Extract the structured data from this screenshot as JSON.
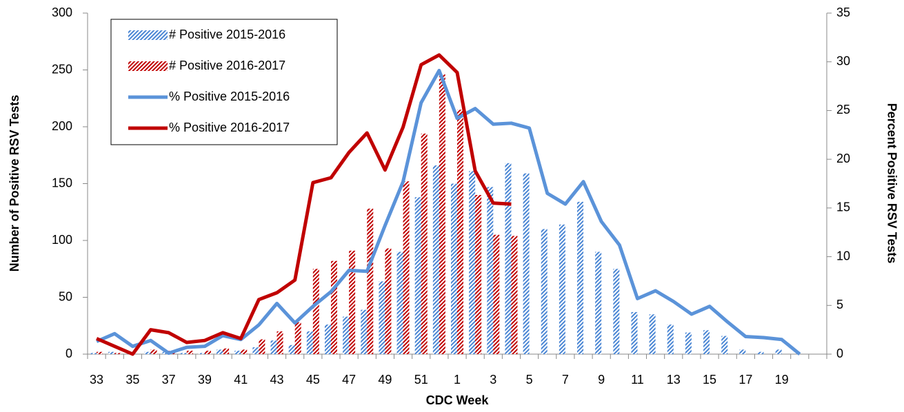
{
  "chart_data": {
    "type": "bar",
    "x_label": "CDC Week",
    "y_label": "Number of Positive RSV Tests",
    "y2_label": "Percent Positive RSV Tests",
    "categories": [
      "33",
      null,
      "35",
      null,
      "37",
      null,
      "39",
      null,
      "41",
      null,
      "43",
      null,
      "45",
      null,
      "47",
      null,
      "49",
      null,
      "51",
      null,
      "1",
      null,
      "3",
      null,
      "5",
      null,
      "7",
      null,
      "9",
      null,
      "11",
      null,
      "13",
      null,
      "15",
      null,
      "17",
      null,
      "19",
      null,
      null
    ],
    "series": [
      {
        "name": "# Positive 2015-2016",
        "type": "bar",
        "color": "#4a86d4",
        "values": [
          1,
          2,
          0,
          2,
          2,
          1,
          1,
          4,
          3,
          6,
          12,
          8,
          20,
          26,
          33,
          39,
          64,
          90,
          138,
          166,
          150,
          161,
          147,
          168,
          159,
          110,
          114,
          134,
          90,
          75,
          37,
          35,
          26,
          19,
          21,
          16,
          4,
          2,
          4,
          0,
          null
        ]
      },
      {
        "name": "# Positive 2016-2017",
        "type": "bar",
        "color": "#c00000",
        "values": [
          2,
          1,
          0,
          4,
          3,
          3,
          3,
          5,
          4,
          13,
          20,
          28,
          75,
          82,
          91,
          128,
          93,
          152,
          194,
          246,
          215,
          140,
          105,
          104,
          null,
          null,
          null,
          null,
          null,
          null,
          null,
          null,
          null,
          null,
          null,
          null,
          null,
          null,
          null,
          null,
          null
        ]
      },
      {
        "name": "% Positive 2015-2016",
        "type": "line",
        "axis": "y2",
        "color": "#5b93d9",
        "values": [
          1.3,
          2.1,
          0.8,
          1.4,
          0.1,
          0.7,
          0.8,
          1.9,
          1.5,
          3.0,
          5.2,
          3.2,
          4.9,
          6.4,
          8.6,
          8.5,
          13.2,
          17.7,
          25.8,
          29.1,
          24.2,
          25.2,
          23.6,
          23.7,
          23.2,
          16.5,
          15.4,
          17.7,
          13.6,
          11.2,
          5.7,
          6.5,
          5.4,
          4.1,
          4.9,
          3.3,
          1.8,
          1.7,
          1.5,
          0,
          null
        ]
      },
      {
        "name": "% Positive 2016-2017",
        "type": "line",
        "axis": "y2",
        "color": "#c00000",
        "values": [
          1.6,
          0.8,
          0.0,
          2.5,
          2.2,
          1.2,
          1.4,
          2.2,
          1.6,
          5.6,
          6.3,
          7.6,
          17.6,
          18.1,
          20.7,
          22.7,
          18.9,
          23.3,
          29.7,
          30.7,
          28.9,
          18.8,
          15.5,
          15.4,
          null,
          null,
          null,
          null,
          null,
          null,
          null,
          null,
          null,
          null,
          null,
          null,
          null,
          null,
          null,
          null,
          null
        ]
      }
    ],
    "ylim": [
      0,
      300
    ],
    "yticks": [
      0,
      50,
      100,
      150,
      200,
      250,
      300
    ],
    "y2lim": [
      0,
      35
    ],
    "y2ticks": [
      0,
      5,
      10,
      15,
      20,
      25,
      30,
      35
    ],
    "grid": false,
    "legend": "upper left"
  }
}
